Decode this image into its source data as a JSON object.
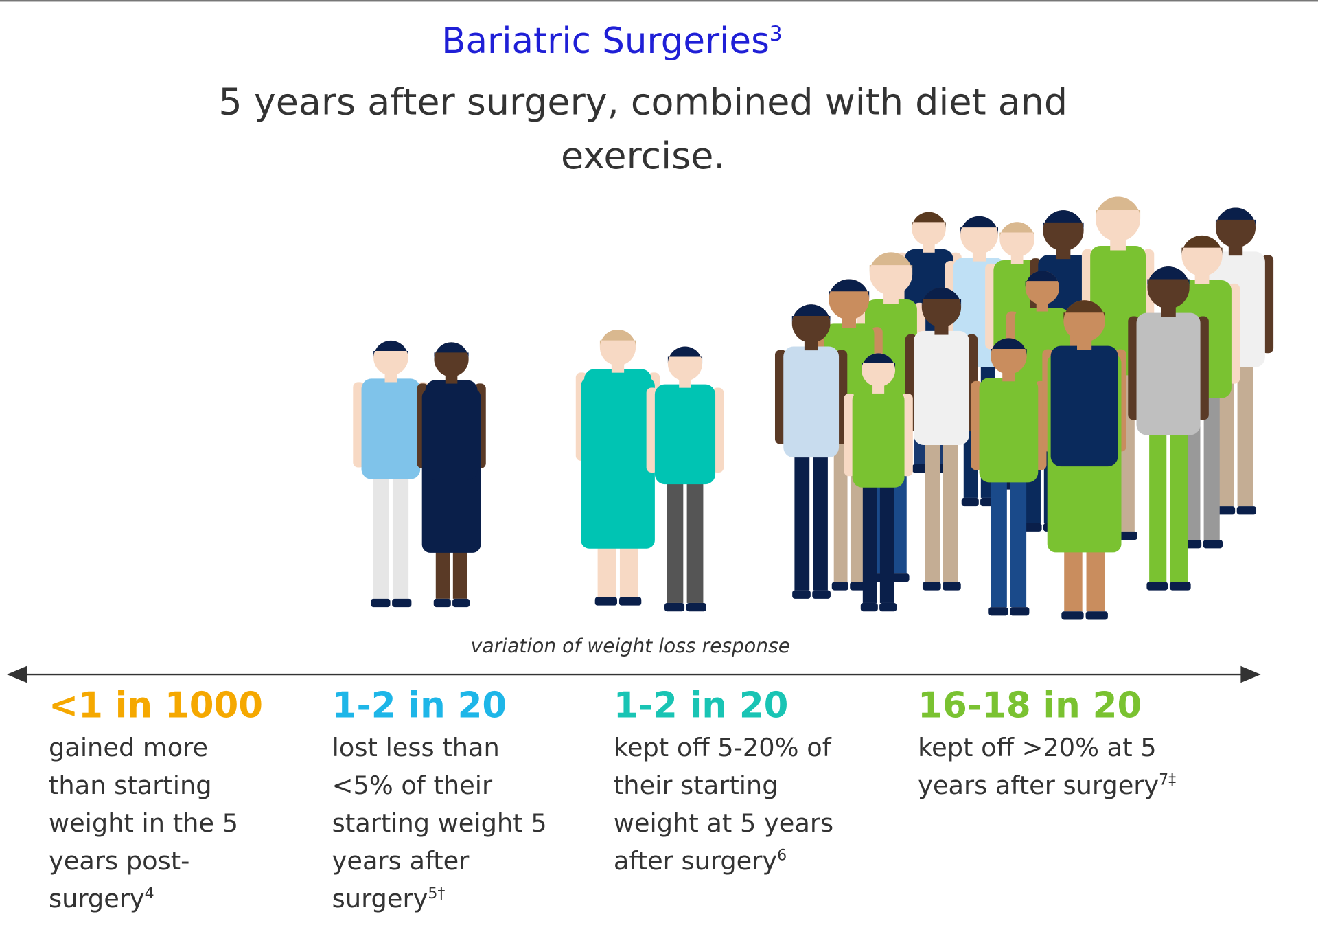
{
  "header": {
    "title": "Bariatric Surgeries",
    "title_sup": "3",
    "subtitle": "5 years after surgery, combined with diet and exercise."
  },
  "axis_label": "variation of weight loss response",
  "columns": [
    {
      "stat": "<1 in 1000",
      "text": "gained more than starting weight in the 5 years post-surgery",
      "sup": "4"
    },
    {
      "stat": "1-2 in 20",
      "text": "lost less than <5% of their starting weight 5 years after surgery",
      "sup": "5†"
    },
    {
      "stat": "1-2 in 20",
      "text": "kept off 5-20% of their starting weight at 5 years after surgery",
      "sup": "6"
    },
    {
      "stat": "16-18 in 20",
      "text": "kept off >20% at 5 years after surgery",
      "sup": "7‡"
    }
  ]
}
